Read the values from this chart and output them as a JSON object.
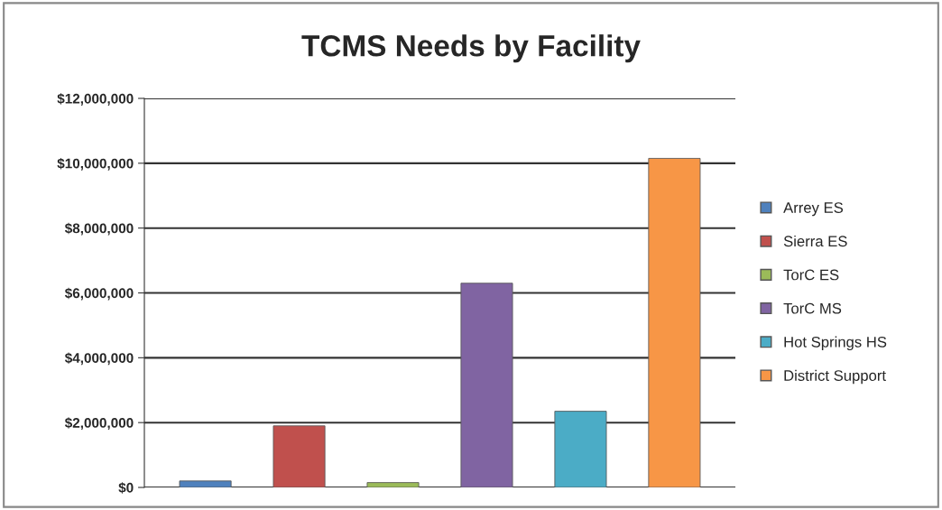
{
  "chart_data": {
    "type": "bar",
    "title": "TCMS Needs by Facility",
    "categories": [
      null
    ],
    "series": [
      {
        "name": "Arrey ES",
        "color": "#4f81bd",
        "values": [
          200000
        ]
      },
      {
        "name": "Sierra ES",
        "color": "#c0504d",
        "values": [
          1900000
        ]
      },
      {
        "name": "TorC ES",
        "color": "#9bbb59",
        "values": [
          150000
        ]
      },
      {
        "name": "TorC MS",
        "color": "#8064a2",
        "values": [
          6300000
        ]
      },
      {
        "name": "Hot Springs HS",
        "color": "#4bacc6",
        "values": [
          2350000
        ]
      },
      {
        "name": "District Support",
        "color": "#f79646",
        "values": [
          10150000
        ]
      }
    ],
    "ylim": [
      0,
      12000000
    ],
    "yticks": [
      {
        "value": 0,
        "label": "$0"
      },
      {
        "value": 2000000,
        "label": "$2,000,000"
      },
      {
        "value": 4000000,
        "label": "$4,000,000"
      },
      {
        "value": 6000000,
        "label": "$6,000,000"
      },
      {
        "value": 8000000,
        "label": "$8,000,000"
      },
      {
        "value": 10000000,
        "label": "$10,000,000"
      },
      {
        "value": 12000000,
        "label": "$12,000,000"
      }
    ],
    "grid": "y",
    "legend": "right"
  }
}
